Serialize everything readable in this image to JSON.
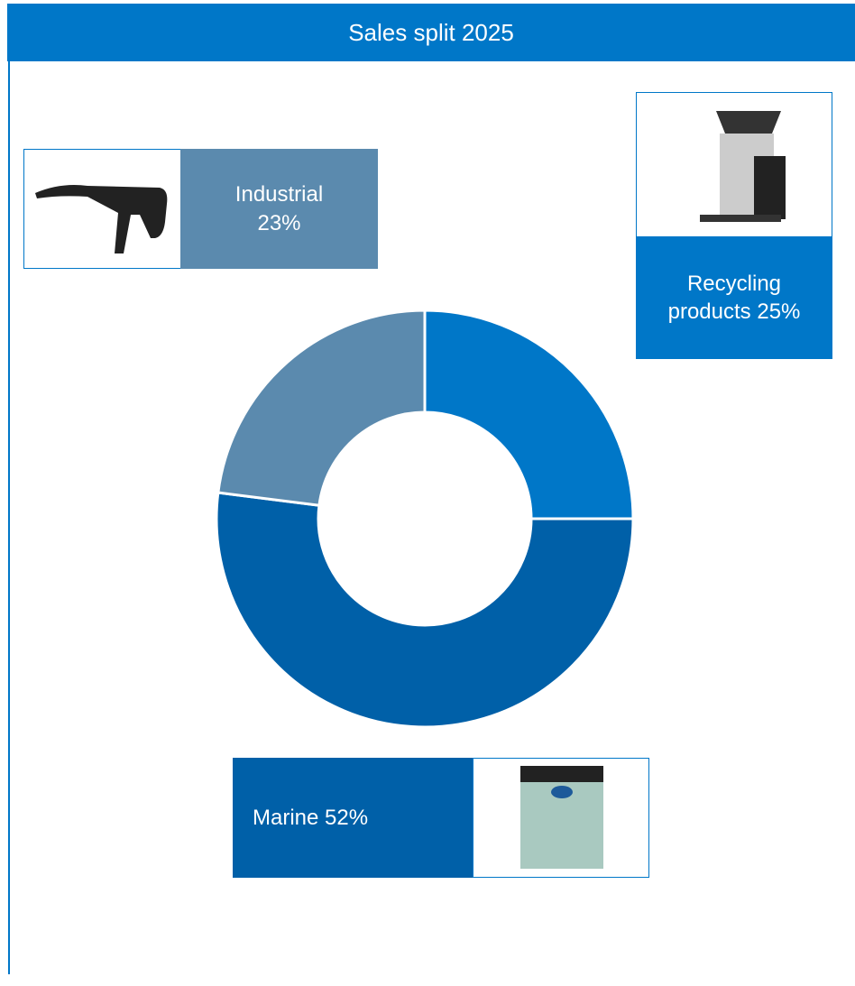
{
  "chart_data": {
    "type": "donut",
    "title": "Sales split 2025",
    "categories": [
      "Recycling products",
      "Marine",
      "Industrial"
    ],
    "values": [
      25,
      52,
      23
    ],
    "value_labels": [
      "25%",
      "52%",
      "23%"
    ],
    "colors": [
      "#0077c8",
      "#0060a8",
      "#5b8aae"
    ]
  }
}
